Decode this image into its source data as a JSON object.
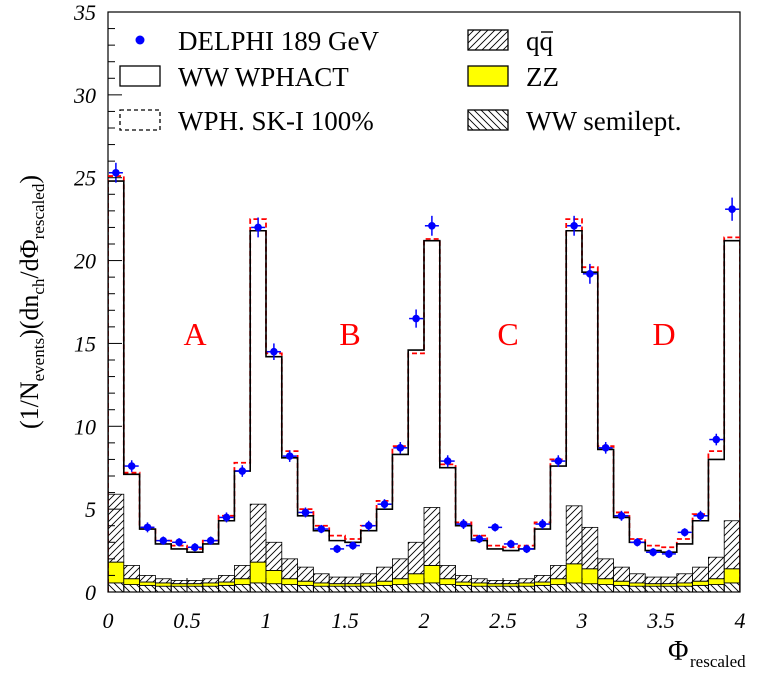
{
  "chart_data": {
    "type": "histogram",
    "title": "",
    "xlabel": "Φ",
    "xlabel_sub": "rescaled",
    "ylabel_parts": [
      "(1/N",
      "events",
      ")(dn",
      "ch",
      "/dΦ",
      "rescaled",
      ")"
    ],
    "xlim": [
      0,
      4
    ],
    "ylim": [
      0,
      35
    ],
    "xticks": [
      "0",
      "0.5",
      "1",
      "1.5",
      "2",
      "2.5",
      "3",
      "3.5",
      "4"
    ],
    "yticks": [
      "0",
      "5",
      "10",
      "15",
      "20",
      "25",
      "30",
      "35"
    ],
    "grid": false,
    "legend_position": "top",
    "legend": {
      "data": "DELPHI 189 GeV",
      "wphact": "WW WPHACT",
      "sk1": "WPH. SK-I 100%",
      "qq_q": "q",
      "qq_qbar": "q",
      "zz": "ZZ",
      "semilept": "WW semilept."
    },
    "region_labels": [
      "A",
      "B",
      "C",
      "D"
    ],
    "bin_edges": [
      0,
      0.1,
      0.2,
      0.3,
      0.4,
      0.5,
      0.6,
      0.7,
      0.8,
      0.9,
      1.0,
      1.1,
      1.2,
      1.3,
      1.4,
      1.5,
      1.6,
      1.7,
      1.8,
      1.9,
      2.0,
      2.1,
      2.2,
      2.3,
      2.4,
      2.5,
      2.6,
      2.7,
      2.8,
      2.9,
      3.0,
      3.1,
      3.2,
      3.3,
      3.4,
      3.5,
      3.6,
      3.7,
      3.8,
      3.9,
      4.0
    ],
    "series": [
      {
        "name": "DELPHI 189 GeV",
        "kind": "data_points",
        "x": [
          0.05,
          0.15,
          0.25,
          0.35,
          0.45,
          0.55,
          0.65,
          0.75,
          0.85,
          0.95,
          1.05,
          1.15,
          1.25,
          1.35,
          1.45,
          1.55,
          1.65,
          1.75,
          1.85,
          1.95,
          2.05,
          2.15,
          2.25,
          2.35,
          2.45,
          2.55,
          2.65,
          2.75,
          2.85,
          2.95,
          3.05,
          3.15,
          3.25,
          3.35,
          3.45,
          3.55,
          3.65,
          3.75,
          3.85,
          3.95
        ],
        "values": [
          25.3,
          7.6,
          3.9,
          3.1,
          3.0,
          2.7,
          3.1,
          4.5,
          7.3,
          22.0,
          14.5,
          8.2,
          4.8,
          3.8,
          2.6,
          2.8,
          4.0,
          5.3,
          8.7,
          16.5,
          22.1,
          7.9,
          4.1,
          3.2,
          3.9,
          2.9,
          2.6,
          4.1,
          7.9,
          22.1,
          19.2,
          8.7,
          4.6,
          3.0,
          2.4,
          2.3,
          3.6,
          4.6,
          9.2,
          23.1
        ],
        "errors": [
          0.6,
          0.35,
          0.3,
          0.25,
          0.25,
          0.25,
          0.25,
          0.3,
          0.35,
          0.6,
          0.5,
          0.35,
          0.3,
          0.25,
          0.25,
          0.25,
          0.3,
          0.3,
          0.35,
          0.55,
          0.6,
          0.35,
          0.3,
          0.25,
          0.25,
          0.25,
          0.25,
          0.3,
          0.35,
          0.6,
          0.6,
          0.35,
          0.3,
          0.25,
          0.25,
          0.25,
          0.25,
          0.3,
          0.35,
          0.7
        ]
      },
      {
        "name": "WW WPHACT",
        "kind": "step",
        "values": [
          24.8,
          7.1,
          3.8,
          2.9,
          2.6,
          2.4,
          2.9,
          4.3,
          7.3,
          21.8,
          14.2,
          8.1,
          4.6,
          3.7,
          3.1,
          3.0,
          3.7,
          5.0,
          8.3,
          14.6,
          21.2,
          7.5,
          4.0,
          3.1,
          2.6,
          2.5,
          2.6,
          3.8,
          7.6,
          21.8,
          19.3,
          8.6,
          4.5,
          3.0,
          2.5,
          2.4,
          2.9,
          4.3,
          8.0,
          21.2
        ]
      },
      {
        "name": "WPH. SK-I 100%",
        "kind": "step_dashed",
        "values": [
          25.1,
          7.2,
          3.9,
          3.1,
          2.8,
          2.6,
          3.1,
          4.6,
          7.8,
          22.5,
          14.4,
          8.5,
          5.0,
          4.0,
          3.4,
          3.2,
          4.0,
          5.5,
          8.8,
          14.4,
          21.3,
          7.7,
          4.2,
          3.4,
          2.8,
          2.7,
          2.8,
          4.2,
          8.0,
          22.5,
          19.6,
          8.8,
          4.8,
          3.2,
          2.8,
          2.7,
          3.2,
          4.7,
          8.5,
          21.4
        ]
      },
      {
        "name": "qq",
        "kind": "stack_hatched",
        "values": [
          5.9,
          1.6,
          1.0,
          0.8,
          0.7,
          0.7,
          0.8,
          1.0,
          1.6,
          5.3,
          3.0,
          2.0,
          1.5,
          1.1,
          0.9,
          0.9,
          1.1,
          1.5,
          2.0,
          3.0,
          5.1,
          1.6,
          1.0,
          0.8,
          0.7,
          0.7,
          0.8,
          1.0,
          1.6,
          5.2,
          3.9,
          2.0,
          1.5,
          1.1,
          0.9,
          0.9,
          1.1,
          1.5,
          2.1,
          4.3
        ]
      },
      {
        "name": "ZZ",
        "kind": "stack_fill",
        "values": [
          1.8,
          0.8,
          0.6,
          0.55,
          0.5,
          0.5,
          0.55,
          0.6,
          0.8,
          1.8,
          1.3,
          0.8,
          0.65,
          0.55,
          0.5,
          0.5,
          0.55,
          0.65,
          0.8,
          1.1,
          1.6,
          0.8,
          0.6,
          0.55,
          0.5,
          0.5,
          0.55,
          0.6,
          0.8,
          1.7,
          1.4,
          0.8,
          0.65,
          0.55,
          0.5,
          0.5,
          0.55,
          0.65,
          0.8,
          1.4
        ],
        "color": "#ffff00"
      },
      {
        "name": "WW semilept.",
        "kind": "stack_hatched",
        "values": [
          0.55,
          0.45,
          0.4,
          0.35,
          0.35,
          0.35,
          0.35,
          0.4,
          0.45,
          0.55,
          0.5,
          0.45,
          0.4,
          0.35,
          0.35,
          0.35,
          0.35,
          0.4,
          0.45,
          0.5,
          0.55,
          0.45,
          0.4,
          0.35,
          0.35,
          0.35,
          0.35,
          0.4,
          0.45,
          0.55,
          0.5,
          0.45,
          0.4,
          0.35,
          0.35,
          0.35,
          0.35,
          0.4,
          0.45,
          0.55
        ]
      }
    ],
    "colors": {
      "data": "#0000ff",
      "data_error": "#0000ff",
      "sk1": "#ff0000",
      "region_label": "#ff0000",
      "zz": "#ffff00",
      "axis": "#000000"
    }
  }
}
